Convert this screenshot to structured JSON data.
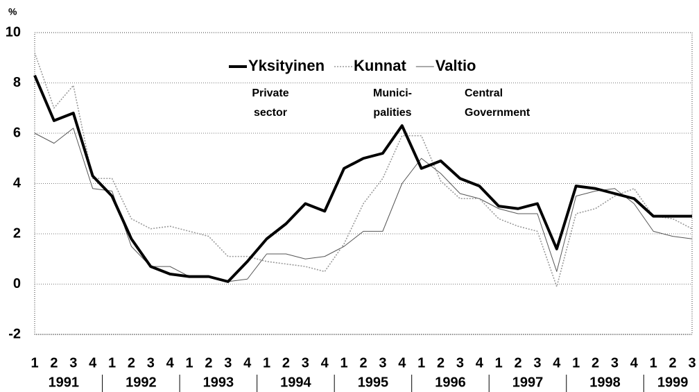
{
  "chart_data": {
    "type": "line",
    "y_unit_label": "%",
    "categories": [
      "1",
      "2",
      "3",
      "4",
      "1",
      "2",
      "3",
      "4",
      "1",
      "2",
      "3",
      "4",
      "1",
      "2",
      "3",
      "4",
      "1",
      "2",
      "3",
      "4",
      "1",
      "2",
      "3",
      "4",
      "1",
      "2",
      "3",
      "4",
      "1",
      "2",
      "3",
      "4",
      "1",
      "2",
      "3"
    ],
    "years": [
      "1991",
      "1992",
      "1993",
      "1994",
      "1995",
      "1996",
      "1997",
      "1998",
      "1999"
    ],
    "series": [
      {
        "name": "Yksityinen",
        "color": "#000000",
        "linewidth": 4,
        "style": "solid",
        "values": [
          8.3,
          6.5,
          6.8,
          4.3,
          3.5,
          1.8,
          0.7,
          0.4,
          0.3,
          0.3,
          0.1,
          0.9,
          1.8,
          2.4,
          3.2,
          2.9,
          4.6,
          5.0,
          5.2,
          6.3,
          4.6,
          4.9,
          4.2,
          3.9,
          3.1,
          3.0,
          3.2,
          1.4,
          3.9,
          3.8,
          3.6,
          3.4,
          2.7,
          2.7,
          2.7
        ]
      },
      {
        "name": "Kunnat",
        "color": "#999999",
        "linewidth": 1.6,
        "style": "dotted",
        "values": [
          9.2,
          7.0,
          7.9,
          4.2,
          4.2,
          2.6,
          2.2,
          2.3,
          2.1,
          1.9,
          1.1,
          1.1,
          0.9,
          0.8,
          0.7,
          0.5,
          1.6,
          3.2,
          4.2,
          5.9,
          5.9,
          4.1,
          3.4,
          3.4,
          2.6,
          2.3,
          2.1,
          -0.1,
          2.8,
          3.0,
          3.5,
          3.8,
          2.7,
          2.6,
          2.2
        ]
      },
      {
        "name": "Valtio",
        "color": "#555555",
        "linewidth": 1,
        "style": "solid",
        "values": [
          6.0,
          5.6,
          6.2,
          3.8,
          3.7,
          1.5,
          0.7,
          0.7,
          0.3,
          0.3,
          0.1,
          0.2,
          1.2,
          1.2,
          1.0,
          1.1,
          1.5,
          2.1,
          2.1,
          4.0,
          5.0,
          4.4,
          3.6,
          3.4,
          3.0,
          2.8,
          2.8,
          0.5,
          3.5,
          3.7,
          3.8,
          3.2,
          2.1,
          1.9,
          1.8
        ]
      }
    ],
    "annotations": [
      {
        "lines": [
          "Private",
          "sector"
        ]
      },
      {
        "lines": [
          "Munici-",
          "palities"
        ]
      },
      {
        "lines": [
          "Central",
          "Government"
        ]
      }
    ],
    "ylim": [
      -2,
      10
    ],
    "yticks": [
      -2,
      0,
      2,
      4,
      6,
      8,
      10
    ],
    "grid": true,
    "legend": "top"
  }
}
